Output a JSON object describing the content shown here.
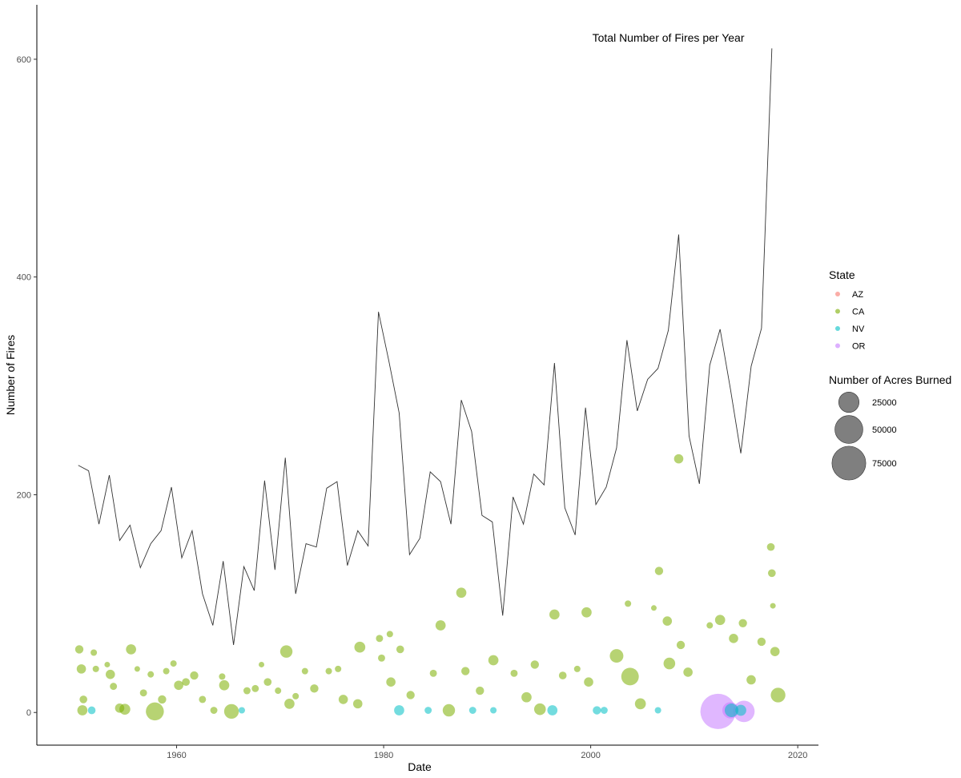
{
  "chart_data": {
    "type": "line+scatter",
    "title": "",
    "xlabel": "Date",
    "ylabel": "Number of Fires",
    "xlim": [
      1946.5,
      2022
    ],
    "ylim": [
      -30,
      650
    ],
    "x_ticks": [
      1960,
      1980,
      2000,
      2020
    ],
    "x_tick_labels": [
      "1960",
      "1980",
      "2000",
      "2020"
    ],
    "y_ticks": [
      0,
      200,
      400,
      600
    ],
    "y_tick_labels": [
      "0",
      "200",
      "400",
      "600"
    ],
    "annotation": {
      "text": "Total Number of Fires per Year",
      "x": 2007.5,
      "y": 620
    },
    "line_series": {
      "name": "Total Number of Fires per Year",
      "x": [
        1950.5,
        1951.5,
        1952.5,
        1953.5,
        1954.5,
        1955.5,
        1956.5,
        1957.5,
        1958.5,
        1959.5,
        1960.5,
        1961.5,
        1962.5,
        1963.5,
        1964.5,
        1965.5,
        1966.5,
        1967.5,
        1968.5,
        1969.5,
        1970.5,
        1971.5,
        1972.5,
        1973.5,
        1974.5,
        1975.5,
        1976.5,
        1977.5,
        1978.5,
        1979.5,
        1980.5,
        1981.5,
        1982.5,
        1983.5,
        1984.5,
        1985.5,
        1986.5,
        1987.5,
        1988.5,
        1989.5,
        1990.5,
        1991.5,
        1992.5,
        1993.5,
        1994.5,
        1995.5,
        1996.5,
        1997.5,
        1998.5,
        1999.5,
        2000.5,
        2001.5,
        2002.5,
        2003.5,
        2004.5,
        2005.5,
        2006.5,
        2007.5,
        2008.5,
        2009.5,
        2010.5,
        2011.5,
        2012.5,
        2013.5,
        2014.5,
        2015.5,
        2016.5,
        2017.5
      ],
      "y": [
        227,
        222,
        173,
        218,
        158,
        172,
        133,
        155,
        167,
        207,
        142,
        167,
        109,
        80,
        139,
        62,
        134,
        112,
        213,
        131,
        234,
        109,
        155,
        152,
        206,
        212,
        135,
        167,
        153,
        368,
        323,
        275,
        145,
        160,
        221,
        212,
        173,
        287,
        258,
        181,
        175,
        89,
        198,
        173,
        219,
        209,
        321,
        188,
        163,
        280,
        191,
        207,
        243,
        342,
        277,
        306,
        316,
        351,
        439,
        254,
        210,
        319,
        352,
        297,
        238,
        318,
        353,
        610
      ]
    },
    "scatter_series_legend": [
      {
        "name": "AZ",
        "color": "#F8766D"
      },
      {
        "name": "CA",
        "color": "#7CAE00"
      },
      {
        "name": "NV",
        "color": "#00BFC4"
      },
      {
        "name": "OR",
        "color": "#C77CFF"
      }
    ],
    "scatter_points": [
      {
        "state": "CA",
        "x": 1950.6,
        "y": 58,
        "acres": 3000
      },
      {
        "state": "CA",
        "x": 1950.8,
        "y": 40,
        "acres": 4000
      },
      {
        "state": "CA",
        "x": 1951.0,
        "y": 12,
        "acres": 2500
      },
      {
        "state": "CA",
        "x": 1950.9,
        "y": 2,
        "acres": 5000
      },
      {
        "state": "NV",
        "x": 1951.8,
        "y": 2,
        "acres": 2500
      },
      {
        "state": "CA",
        "x": 1952.0,
        "y": 55,
        "acres": 1500
      },
      {
        "state": "CA",
        "x": 1952.2,
        "y": 40,
        "acres": 1500
      },
      {
        "state": "CA",
        "x": 1953.3,
        "y": 44,
        "acres": 1000
      },
      {
        "state": "CA",
        "x": 1953.6,
        "y": 35,
        "acres": 4000
      },
      {
        "state": "CA",
        "x": 1953.9,
        "y": 24,
        "acres": 2000
      },
      {
        "state": "CA",
        "x": 1954.5,
        "y": 4,
        "acres": 4000
      },
      {
        "state": "CA",
        "x": 1955.0,
        "y": 3,
        "acres": 6000
      },
      {
        "state": "CA",
        "x": 1955.6,
        "y": 58,
        "acres": 5000
      },
      {
        "state": "CA",
        "x": 1956.2,
        "y": 40,
        "acres": 1000
      },
      {
        "state": "CA",
        "x": 1956.8,
        "y": 18,
        "acres": 2000
      },
      {
        "state": "CA",
        "x": 1957.5,
        "y": 35,
        "acres": 1500
      },
      {
        "state": "CA",
        "x": 1957.9,
        "y": 1,
        "acres": 19000
      },
      {
        "state": "CA",
        "x": 1958.6,
        "y": 12,
        "acres": 3000
      },
      {
        "state": "CA",
        "x": 1959.0,
        "y": 38,
        "acres": 1500
      },
      {
        "state": "CA",
        "x": 1959.7,
        "y": 45,
        "acres": 1500
      },
      {
        "state": "CA",
        "x": 1960.2,
        "y": 25,
        "acres": 4000
      },
      {
        "state": "CA",
        "x": 1960.9,
        "y": 28,
        "acres": 2500
      },
      {
        "state": "CA",
        "x": 1961.7,
        "y": 34,
        "acres": 3000
      },
      {
        "state": "CA",
        "x": 1962.5,
        "y": 12,
        "acres": 2000
      },
      {
        "state": "CA",
        "x": 1963.6,
        "y": 2,
        "acres": 2000
      },
      {
        "state": "CA",
        "x": 1964.4,
        "y": 33,
        "acres": 1500
      },
      {
        "state": "CA",
        "x": 1964.6,
        "y": 25,
        "acres": 5000
      },
      {
        "state": "CA",
        "x": 1965.3,
        "y": 1,
        "acres": 12000
      },
      {
        "state": "NV",
        "x": 1966.3,
        "y": 2,
        "acres": 1500
      },
      {
        "state": "CA",
        "x": 1966.8,
        "y": 20,
        "acres": 2000
      },
      {
        "state": "CA",
        "x": 1967.6,
        "y": 22,
        "acres": 2000
      },
      {
        "state": "CA",
        "x": 1968.2,
        "y": 44,
        "acres": 1000
      },
      {
        "state": "CA",
        "x": 1968.8,
        "y": 28,
        "acres": 2500
      },
      {
        "state": "CA",
        "x": 1969.8,
        "y": 20,
        "acres": 1500
      },
      {
        "state": "CA",
        "x": 1970.6,
        "y": 56,
        "acres": 8000
      },
      {
        "state": "CA",
        "x": 1970.9,
        "y": 8,
        "acres": 5000
      },
      {
        "state": "CA",
        "x": 1971.5,
        "y": 15,
        "acres": 1500
      },
      {
        "state": "CA",
        "x": 1972.4,
        "y": 38,
        "acres": 1500
      },
      {
        "state": "CA",
        "x": 1973.3,
        "y": 22,
        "acres": 3000
      },
      {
        "state": "CA",
        "x": 1974.7,
        "y": 38,
        "acres": 1500
      },
      {
        "state": "CA",
        "x": 1975.6,
        "y": 40,
        "acres": 1500
      },
      {
        "state": "CA",
        "x": 1976.1,
        "y": 12,
        "acres": 4000
      },
      {
        "state": "CA",
        "x": 1977.5,
        "y": 8,
        "acres": 4000
      },
      {
        "state": "CA",
        "x": 1977.7,
        "y": 60,
        "acres": 6000
      },
      {
        "state": "CA",
        "x": 1979.6,
        "y": 68,
        "acres": 2000
      },
      {
        "state": "CA",
        "x": 1979.8,
        "y": 50,
        "acres": 2000
      },
      {
        "state": "CA",
        "x": 1980.6,
        "y": 72,
        "acres": 1500
      },
      {
        "state": "CA",
        "x": 1980.7,
        "y": 28,
        "acres": 4000
      },
      {
        "state": "CA",
        "x": 1981.6,
        "y": 58,
        "acres": 2500
      },
      {
        "state": "NV",
        "x": 1981.5,
        "y": 2,
        "acres": 5000
      },
      {
        "state": "CA",
        "x": 1982.6,
        "y": 16,
        "acres": 3000
      },
      {
        "state": "NV",
        "x": 1984.3,
        "y": 2,
        "acres": 2000
      },
      {
        "state": "CA",
        "x": 1984.8,
        "y": 36,
        "acres": 2000
      },
      {
        "state": "CA",
        "x": 1985.5,
        "y": 80,
        "acres": 5000
      },
      {
        "state": "CA",
        "x": 1986.3,
        "y": 2,
        "acres": 8000
      },
      {
        "state": "CA",
        "x": 1987.5,
        "y": 110,
        "acres": 5000
      },
      {
        "state": "CA",
        "x": 1987.9,
        "y": 38,
        "acres": 3000
      },
      {
        "state": "NV",
        "x": 1988.6,
        "y": 2,
        "acres": 2000
      },
      {
        "state": "CA",
        "x": 1989.3,
        "y": 20,
        "acres": 3000
      },
      {
        "state": "NV",
        "x": 1990.6,
        "y": 2,
        "acres": 1500
      },
      {
        "state": "CA",
        "x": 1990.6,
        "y": 48,
        "acres": 5000
      },
      {
        "state": "CA",
        "x": 1992.6,
        "y": 36,
        "acres": 2000
      },
      {
        "state": "CA",
        "x": 1993.8,
        "y": 14,
        "acres": 5000
      },
      {
        "state": "CA",
        "x": 1994.6,
        "y": 44,
        "acres": 3000
      },
      {
        "state": "CA",
        "x": 1995.1,
        "y": 3,
        "acres": 7000
      },
      {
        "state": "NV",
        "x": 1996.3,
        "y": 2,
        "acres": 5000
      },
      {
        "state": "CA",
        "x": 1996.5,
        "y": 90,
        "acres": 5000
      },
      {
        "state": "CA",
        "x": 1997.3,
        "y": 34,
        "acres": 2500
      },
      {
        "state": "CA",
        "x": 1998.7,
        "y": 40,
        "acres": 1500
      },
      {
        "state": "CA",
        "x": 1999.6,
        "y": 92,
        "acres": 5000
      },
      {
        "state": "CA",
        "x": 1999.8,
        "y": 28,
        "acres": 4000
      },
      {
        "state": "NV",
        "x": 2000.6,
        "y": 2,
        "acres": 3000
      },
      {
        "state": "NV",
        "x": 2001.3,
        "y": 2,
        "acres": 2000
      },
      {
        "state": "CA",
        "x": 2002.5,
        "y": 52,
        "acres": 10000
      },
      {
        "state": "CA",
        "x": 2003.8,
        "y": 33,
        "acres": 18000
      },
      {
        "state": "CA",
        "x": 2003.6,
        "y": 100,
        "acres": 1500
      },
      {
        "state": "CA",
        "x": 2004.8,
        "y": 8,
        "acres": 6000
      },
      {
        "state": "CA",
        "x": 2006.1,
        "y": 96,
        "acres": 1000
      },
      {
        "state": "NV",
        "x": 2006.5,
        "y": 2,
        "acres": 1500
      },
      {
        "state": "CA",
        "x": 2006.6,
        "y": 130,
        "acres": 3000
      },
      {
        "state": "CA",
        "x": 2007.4,
        "y": 84,
        "acres": 4000
      },
      {
        "state": "CA",
        "x": 2007.6,
        "y": 45,
        "acres": 7000
      },
      {
        "state": "CA",
        "x": 2008.5,
        "y": 233,
        "acres": 4000
      },
      {
        "state": "CA",
        "x": 2008.7,
        "y": 62,
        "acres": 3000
      },
      {
        "state": "CA",
        "x": 2009.4,
        "y": 37,
        "acres": 4000
      },
      {
        "state": "CA",
        "x": 2011.5,
        "y": 80,
        "acres": 1500
      },
      {
        "state": "CA",
        "x": 2012.5,
        "y": 85,
        "acres": 5000
      },
      {
        "state": "OR",
        "x": 2012.3,
        "y": 1,
        "acres": 82000
      },
      {
        "state": "OR",
        "x": 2013.5,
        "y": 2,
        "acres": 15000
      },
      {
        "state": "NV",
        "x": 2013.6,
        "y": 2,
        "acres": 10000
      },
      {
        "state": "CA",
        "x": 2013.8,
        "y": 68,
        "acres": 4000
      },
      {
        "state": "OR",
        "x": 2014.8,
        "y": 1,
        "acres": 28000
      },
      {
        "state": "NV",
        "x": 2014.5,
        "y": 2,
        "acres": 6000
      },
      {
        "state": "CA",
        "x": 2014.7,
        "y": 82,
        "acres": 3000
      },
      {
        "state": "CA",
        "x": 2015.5,
        "y": 30,
        "acres": 4000
      },
      {
        "state": "CA",
        "x": 2016.5,
        "y": 65,
        "acres": 3000
      },
      {
        "state": "CA",
        "x": 2017.4,
        "y": 152,
        "acres": 2500
      },
      {
        "state": "CA",
        "x": 2017.5,
        "y": 128,
        "acres": 2500
      },
      {
        "state": "CA",
        "x": 2017.6,
        "y": 98,
        "acres": 1000
      },
      {
        "state": "CA",
        "x": 2017.8,
        "y": 56,
        "acres": 4000
      },
      {
        "state": "CA",
        "x": 2018.1,
        "y": 16,
        "acres": 12000
      }
    ],
    "legend": {
      "placement": "right",
      "color_title": "State",
      "size_title": "Number of Acres Burned",
      "size_entries": [
        {
          "label": "25000",
          "value": 25000
        },
        {
          "label": "50000",
          "value": 50000
        },
        {
          "label": "75000",
          "value": 75000
        }
      ]
    },
    "grid": false
  }
}
